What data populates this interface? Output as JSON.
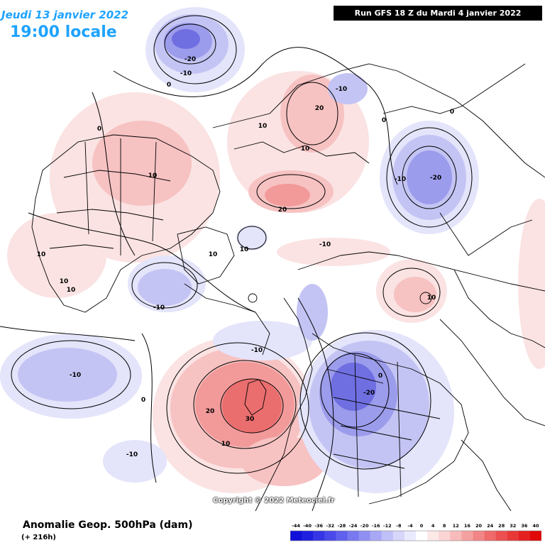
{
  "header": {
    "valid_date": "Jeudi 13 janvier 2022",
    "local_time": "19:00 locale",
    "run_info": "Run GFS 18 Z du Mardi 4 janvier 2022"
  },
  "footer": {
    "parameter": "Anomalie Geop. 500hPa (dam)",
    "lead_time": "(+ 216h)",
    "copyright": "Copyright © 2022 Meteociel.fr"
  },
  "legend": {
    "ticks": [
      "-44",
      "-40",
      "-36",
      "-32",
      "-28",
      "-24",
      "-20",
      "-16",
      "-12",
      "-8",
      "-4",
      "0",
      "4",
      "8",
      "12",
      "16",
      "20",
      "24",
      "28",
      "32",
      "36",
      "40"
    ],
    "colors": [
      "#1010d8",
      "#2020e0",
      "#3535e6",
      "#4a4aea",
      "#6060ee",
      "#7878f0",
      "#9090f3",
      "#a8a8f6",
      "#c0c0f8",
      "#d6d6fb",
      "#eaeafd",
      "#ffffff",
      "#fde8e8",
      "#fbd4d4",
      "#f8baba",
      "#f5a0a0",
      "#f28585",
      "#ef6a6a",
      "#ec5050",
      "#e83838",
      "#e42020",
      "#e00808"
    ]
  },
  "map": {
    "palette": {
      "pos1": "#fbe3e3",
      "pos2": "#f7c2c2",
      "pos3": "#f29a9a",
      "pos4": "#ea6e6e",
      "neg1": "#e4e4fb",
      "neg2": "#c4c4f4",
      "neg3": "#9c9cec",
      "neg4": "#6f6fe2",
      "coast": "#000000"
    },
    "contour_labels": [
      {
        "id": "l1",
        "text": "-20"
      },
      {
        "id": "l2",
        "text": "-10"
      },
      {
        "id": "l3",
        "text": "0"
      },
      {
        "id": "l4",
        "text": "-10"
      },
      {
        "id": "l5",
        "text": "20"
      },
      {
        "id": "l6",
        "text": "10"
      },
      {
        "id": "l7",
        "text": "10"
      },
      {
        "id": "l8",
        "text": "0"
      },
      {
        "id": "l9",
        "text": "-10"
      },
      {
        "id": "l10",
        "text": "-20"
      },
      {
        "id": "l11",
        "text": "0"
      },
      {
        "id": "l12",
        "text": "10"
      },
      {
        "id": "l13",
        "text": "20"
      },
      {
        "id": "l14",
        "text": "0"
      },
      {
        "id": "l15",
        "text": "10"
      },
      {
        "id": "l16",
        "text": "10"
      },
      {
        "id": "l17",
        "text": "10"
      },
      {
        "id": "l18",
        "text": "10"
      },
      {
        "id": "l19",
        "text": "-10"
      },
      {
        "id": "l20",
        "text": "10"
      },
      {
        "id": "l21",
        "text": "10"
      },
      {
        "id": "l22",
        "text": "-10"
      },
      {
        "id": "l23",
        "text": "-10"
      },
      {
        "id": "l24",
        "text": "-10"
      },
      {
        "id": "l25",
        "text": "-20"
      },
      {
        "id": "l26",
        "text": "20"
      },
      {
        "id": "l27",
        "text": "30"
      },
      {
        "id": "l28",
        "text": "10"
      },
      {
        "id": "l29",
        "text": "0"
      },
      {
        "id": "l30",
        "text": "-10"
      },
      {
        "id": "l31",
        "text": "0"
      }
    ]
  }
}
